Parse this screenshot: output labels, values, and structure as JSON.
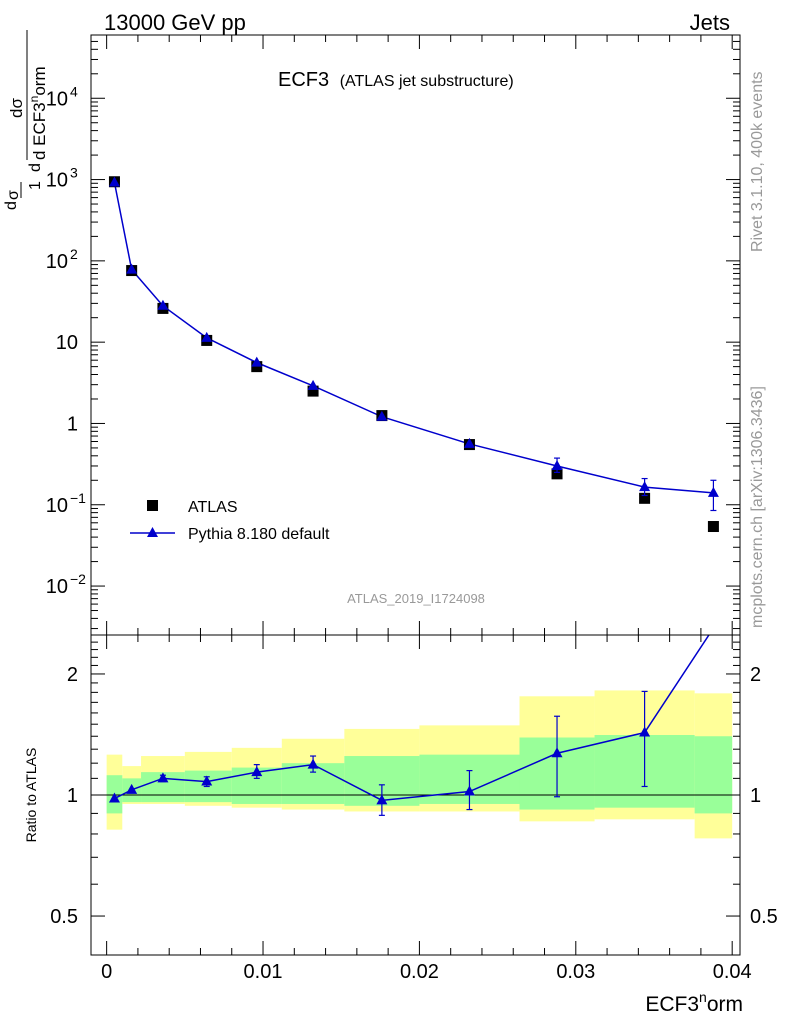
{
  "header": {
    "left": "13000 GeV pp",
    "right": "Jets"
  },
  "side_notes": {
    "rivet": "Rivet 3.1.10,  400k events",
    "mcplots": "mcplots.cern.ch [arXiv:1306.3436]"
  },
  "main_panel": {
    "title": "ECF3",
    "title_note": "(ATLAS jet substructure)",
    "ylabel": {
      "prefix_num": "1",
      "prefix_den": "σ",
      "prefix_d": "d",
      "frac_num": "dσ",
      "frac_den_d": "d ECF3",
      "frac_den_sup": "n",
      "frac_den_tail": "orm"
    },
    "analysis_id": "ATLAS_2019_I1724098",
    "yticks": [
      {
        "value": 0.01,
        "base": "10",
        "exp": "−2"
      },
      {
        "value": 0.1,
        "base": "10",
        "exp": "−1"
      },
      {
        "value": 1,
        "base": "1",
        "exp": ""
      },
      {
        "value": 10,
        "base": "10",
        "exp": ""
      },
      {
        "value": 100,
        "base": "10",
        "exp": "2"
      },
      {
        "value": 1000,
        "base": "10",
        "exp": "3"
      },
      {
        "value": 10000,
        "base": "10",
        "exp": "4"
      }
    ]
  },
  "ratio_panel": {
    "ylabel": "Ratio to ATLAS",
    "yticks": [
      {
        "value": 0.5,
        "label": "0.5"
      },
      {
        "value": 1,
        "label": "1"
      },
      {
        "value": 2,
        "label": "2"
      }
    ]
  },
  "xaxis": {
    "label_main": "ECF3",
    "label_sup": "n",
    "label_tail": "orm",
    "ticks": [
      {
        "value": 0,
        "label": "0"
      },
      {
        "value": 0.01,
        "label": "0.01"
      },
      {
        "value": 0.02,
        "label": "0.02"
      },
      {
        "value": 0.03,
        "label": "0.03"
      },
      {
        "value": 0.04,
        "label": "0.04"
      }
    ]
  },
  "legend": {
    "data_label": "ATLAS",
    "mc_label": "Pythia 8.180 default",
    "placement": "lower-left"
  },
  "colors": {
    "data": "#000000",
    "mc": "#0000cc",
    "band_total": "#ffff99",
    "band_stat": "#99ff99"
  },
  "chart_data": [
    {
      "type": "scatter",
      "panel": "main",
      "yscale": "log",
      "xlim": [
        -0.001,
        0.0405
      ],
      "ylim": [
        0.0025,
        60000
      ],
      "series": [
        {
          "name": "ATLAS",
          "x": [
            0.0005,
            0.0016,
            0.0036,
            0.0064,
            0.0096,
            0.0132,
            0.0176,
            0.0232,
            0.0288,
            0.0344,
            0.0388
          ],
          "y": [
            940,
            76,
            26,
            10.5,
            5.0,
            2.5,
            1.25,
            0.55,
            0.24,
            0.12,
            0.054
          ]
        },
        {
          "name": "Pythia 8.180 default",
          "x": [
            0.0005,
            0.0016,
            0.0036,
            0.0064,
            0.0096,
            0.0132,
            0.0176,
            0.0232,
            0.0288,
            0.0344,
            0.0388
          ],
          "y": [
            920,
            78,
            28,
            11.3,
            5.6,
            2.9,
            1.21,
            0.56,
            0.3,
            0.165,
            0.14
          ],
          "yerr_low": [
            0,
            0,
            0,
            0,
            0,
            0,
            0,
            0,
            0.05,
            0.035,
            0.055
          ],
          "yerr_high": [
            0,
            0,
            0,
            0,
            0,
            0,
            0,
            0,
            0.075,
            0.045,
            0.06
          ]
        }
      ]
    },
    {
      "type": "line",
      "panel": "ratio",
      "yscale": "log",
      "xlim": [
        -0.001,
        0.0405
      ],
      "ylim": [
        0.4,
        2.5
      ],
      "ylabel": "Ratio to ATLAS",
      "reference_line": 1,
      "bands": {
        "edges": [
          0,
          0.001,
          0.0022,
          0.005,
          0.008,
          0.0112,
          0.0152,
          0.02,
          0.0264,
          0.0312,
          0.0376,
          0.04
        ],
        "total_low": [
          0.82,
          0.95,
          0.95,
          0.94,
          0.93,
          0.92,
          0.91,
          0.91,
          0.86,
          0.87,
          0.78
        ],
        "total_high": [
          1.26,
          1.18,
          1.25,
          1.28,
          1.31,
          1.38,
          1.46,
          1.49,
          1.76,
          1.82,
          1.79
        ],
        "stat_low": [
          0.9,
          0.96,
          0.96,
          0.96,
          0.95,
          0.95,
          0.94,
          0.95,
          0.92,
          0.93,
          0.9
        ],
        "stat_high": [
          1.12,
          1.1,
          1.14,
          1.15,
          1.17,
          1.2,
          1.25,
          1.26,
          1.39,
          1.41,
          1.4
        ]
      },
      "series": [
        {
          "name": "Pythia 8.180 default",
          "x": [
            0.0005,
            0.0016,
            0.0036,
            0.0064,
            0.0096,
            0.0132,
            0.0176,
            0.0232,
            0.0288,
            0.0344,
            0.0388
          ],
          "y": [
            0.98,
            1.03,
            1.1,
            1.08,
            1.14,
            1.19,
            0.97,
            1.02,
            1.27,
            1.43,
            2.6
          ],
          "yerr_low": [
            0,
            0,
            0.02,
            0.03,
            0.04,
            0.05,
            0.08,
            0.1,
            0.28,
            0.38,
            0
          ],
          "yerr_high": [
            0,
            0,
            0.02,
            0.03,
            0.05,
            0.06,
            0.09,
            0.13,
            0.3,
            0.38,
            0
          ]
        }
      ]
    }
  ]
}
